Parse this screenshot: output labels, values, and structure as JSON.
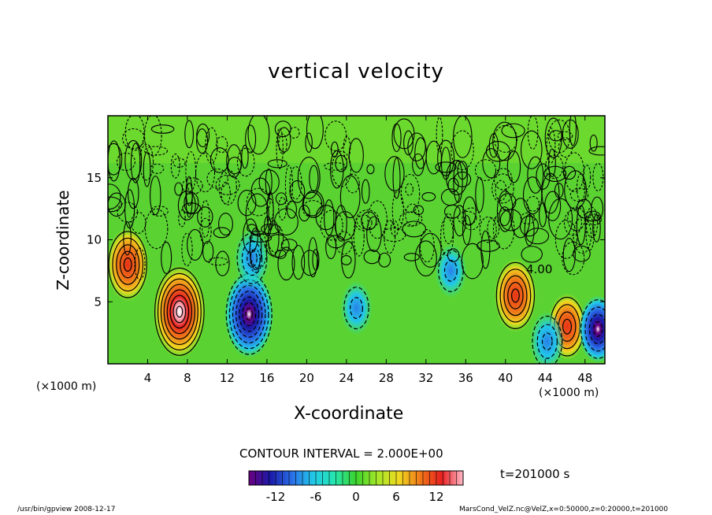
{
  "chart_data": {
    "type": "heatmap",
    "title": "vertical velocity",
    "xlabel": "X-coordinate",
    "ylabel": "Z-coordinate",
    "x_unit": "(×1000 m)",
    "xlim": [
      0,
      50
    ],
    "ylim": [
      0,
      20
    ],
    "x_ticks": [
      4,
      8,
      12,
      16,
      20,
      24,
      28,
      32,
      36,
      40,
      44,
      48
    ],
    "y_ticks": [
      5,
      10,
      15
    ],
    "contour_interval": "CONTOUR INTERVAL = 2.000E+00",
    "contour_line_label": "4.00",
    "colorbar": {
      "range": [
        -16,
        16
      ],
      "ticks": [
        -12,
        -6,
        0,
        6,
        12
      ],
      "colormap": [
        "#6a0080",
        "#1a1aa8",
        "#2a6ee8",
        "#22c8e8",
        "#26e6b0",
        "#3ad22c",
        "#a6e828",
        "#f0d820",
        "#f07818",
        "#e82020",
        "#ffb8c8"
      ]
    },
    "features": [
      {
        "kind": "updraft",
        "x": 2.0,
        "z": 8.0,
        "peak": 10
      },
      {
        "kind": "updraft",
        "x": 7.2,
        "z": 4.2,
        "peak": 16
      },
      {
        "kind": "downdraft",
        "x": 14.2,
        "z": 4.0,
        "peak": -14
      },
      {
        "kind": "downdraft",
        "x": 14.5,
        "z": 8.5,
        "peak": -6
      },
      {
        "kind": "downdraft",
        "x": 25.0,
        "z": 4.5,
        "peak": -4
      },
      {
        "kind": "downdraft",
        "x": 34.5,
        "z": 7.5,
        "peak": -4
      },
      {
        "kind": "updraft",
        "x": 41.0,
        "z": 5.5,
        "peak": 10
      },
      {
        "kind": "updraft",
        "x": 46.2,
        "z": 3.0,
        "peak": 8
      },
      {
        "kind": "downdraft",
        "x": 44.2,
        "z": 1.8,
        "peak": -6
      },
      {
        "kind": "downdraft",
        "x": 49.3,
        "z": 2.8,
        "peak": -8
      }
    ]
  },
  "time_label": "t=201000  s",
  "footer": {
    "left": "/usr/bin/gpview   2008-12-17",
    "right": "MarsCond_VelZ.nc@VelZ,x=0:50000,z=0:20000,t=201000"
  }
}
